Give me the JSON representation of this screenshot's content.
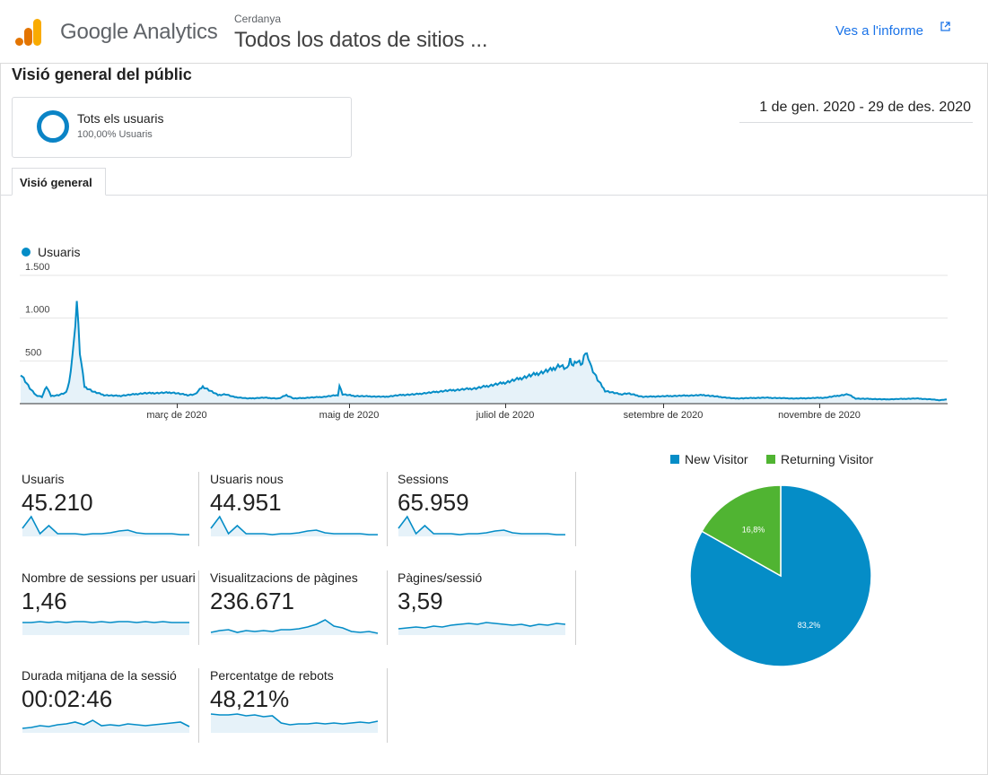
{
  "app": {
    "brand": "Google Analytics",
    "account": "Cerdanya",
    "property": "Todos los datos de sitios ...",
    "report_link": "Ves a l'informe"
  },
  "page": {
    "title": "Visió general del públic",
    "date_range": "1 de gen. 2020 - 29 de des. 2020",
    "tab": "Visió general"
  },
  "segment": {
    "name": "Tots els usuaris",
    "share": "100,00% Usuaris",
    "ring_color": "#0b84c6"
  },
  "chart_data": [
    {
      "type": "line",
      "series": [
        {
          "name": "Usuaris",
          "color": "#058dc7"
        }
      ],
      "x_tick_labels": [
        "març de 2020",
        "maig de 2020",
        "juliol de 2020",
        "setembre de 2020",
        "novembre de 2020"
      ],
      "y_tick_labels": [
        "500",
        "1.000",
        "1.500"
      ],
      "ylim": [
        0,
        1500
      ],
      "anchors": [
        [
          0,
          350
        ],
        [
          6,
          180
        ],
        [
          10,
          100
        ],
        [
          14,
          80
        ],
        [
          17,
          200
        ],
        [
          20,
          90
        ],
        [
          25,
          100
        ],
        [
          30,
          130
        ],
        [
          32,
          250
        ],
        [
          35,
          700
        ],
        [
          37,
          1200
        ],
        [
          39,
          600
        ],
        [
          42,
          200
        ],
        [
          48,
          140
        ],
        [
          55,
          100
        ],
        [
          65,
          90
        ],
        [
          80,
          120
        ],
        [
          100,
          130
        ],
        [
          110,
          100
        ],
        [
          115,
          110
        ],
        [
          120,
          200
        ],
        [
          130,
          100
        ],
        [
          135,
          110
        ],
        [
          140,
          80
        ],
        [
          150,
          60
        ],
        [
          160,
          70
        ],
        [
          170,
          60
        ],
        [
          175,
          100
        ],
        [
          180,
          60
        ],
        [
          200,
          80
        ],
        [
          209,
          100
        ],
        [
          210,
          210
        ],
        [
          212,
          110
        ],
        [
          220,
          90
        ],
        [
          240,
          80
        ],
        [
          250,
          100
        ],
        [
          260,
          110
        ],
        [
          270,
          130
        ],
        [
          280,
          150
        ],
        [
          300,
          180
        ],
        [
          320,
          250
        ],
        [
          330,
          300
        ],
        [
          340,
          350
        ],
        [
          350,
          400
        ],
        [
          355,
          450
        ],
        [
          360,
          400
        ],
        [
          362,
          520
        ],
        [
          364,
          450
        ],
        [
          366,
          500
        ],
        [
          368,
          480
        ],
        [
          370,
          460
        ],
        [
          372,
          600
        ],
        [
          374,
          550
        ],
        [
          376,
          420
        ],
        [
          380,
          280
        ],
        [
          385,
          150
        ],
        [
          395,
          110
        ],
        [
          400,
          120
        ],
        [
          410,
          80
        ],
        [
          430,
          90
        ],
        [
          450,
          100
        ],
        [
          470,
          60
        ],
        [
          490,
          70
        ],
        [
          510,
          60
        ],
        [
          530,
          70
        ],
        [
          545,
          110
        ],
        [
          550,
          60
        ],
        [
          570,
          50
        ],
        [
          590,
          60
        ],
        [
          600,
          50
        ],
        [
          605,
          40
        ],
        [
          610,
          50
        ]
      ]
    },
    {
      "type": "pie",
      "slices": [
        {
          "label": "New Visitor",
          "value": 83.2,
          "color": "#058dc7"
        },
        {
          "label": "Returning Visitor",
          "value": 16.8,
          "color": "#50b432"
        }
      ],
      "legend": "top"
    }
  ],
  "metrics": [
    {
      "label": "Usuaris",
      "value": "45.210",
      "spark": [
        9,
        22,
        3,
        12,
        3,
        3,
        3,
        2,
        3,
        3,
        4,
        6,
        7,
        4,
        3,
        3,
        3,
        3,
        2,
        2
      ]
    },
    {
      "label": "Usuaris nous",
      "value": "44.951",
      "spark": [
        9,
        22,
        3,
        12,
        3,
        3,
        3,
        2,
        3,
        3,
        4,
        6,
        7,
        4,
        3,
        3,
        3,
        3,
        2,
        2
      ]
    },
    {
      "label": "Sessions",
      "value": "65.959",
      "spark": [
        9,
        22,
        3,
        12,
        3,
        3,
        3,
        2,
        3,
        3,
        4,
        6,
        7,
        4,
        3,
        3,
        3,
        3,
        2,
        2
      ]
    },
    {
      "label": "Nombre de sessions per usuari",
      "value": "1,46",
      "spark": [
        14,
        14,
        15,
        14,
        15,
        14,
        15,
        15,
        14,
        15,
        14,
        15,
        15,
        14,
        15,
        14,
        15,
        14,
        14,
        14
      ]
    },
    {
      "label": "Visualitzacions de pàgines",
      "value": "236.671",
      "spark": [
        3,
        5,
        6,
        3,
        5,
        4,
        5,
        4,
        6,
        6,
        7,
        9,
        12,
        17,
        10,
        8,
        4,
        3,
        4,
        2
      ]
    },
    {
      "label": "Pàgines/sessió",
      "value": "3,59",
      "spark": [
        7,
        8,
        9,
        8,
        10,
        9,
        11,
        12,
        13,
        12,
        14,
        13,
        12,
        11,
        12,
        10,
        12,
        11,
        13,
        12
      ]
    },
    {
      "label": "Durada mitjana de la sessió",
      "value": "00:02:46",
      "spark": [
        5,
        6,
        8,
        7,
        9,
        10,
        12,
        9,
        14,
        8,
        9,
        8,
        10,
        9,
        8,
        9,
        10,
        11,
        12,
        7
      ]
    },
    {
      "label": "Percentatge de rebots",
      "value": "48,21%",
      "spark": [
        21,
        20,
        20,
        21,
        19,
        20,
        18,
        19,
        11,
        9,
        10,
        10,
        11,
        10,
        11,
        10,
        11,
        12,
        11,
        13
      ]
    }
  ]
}
